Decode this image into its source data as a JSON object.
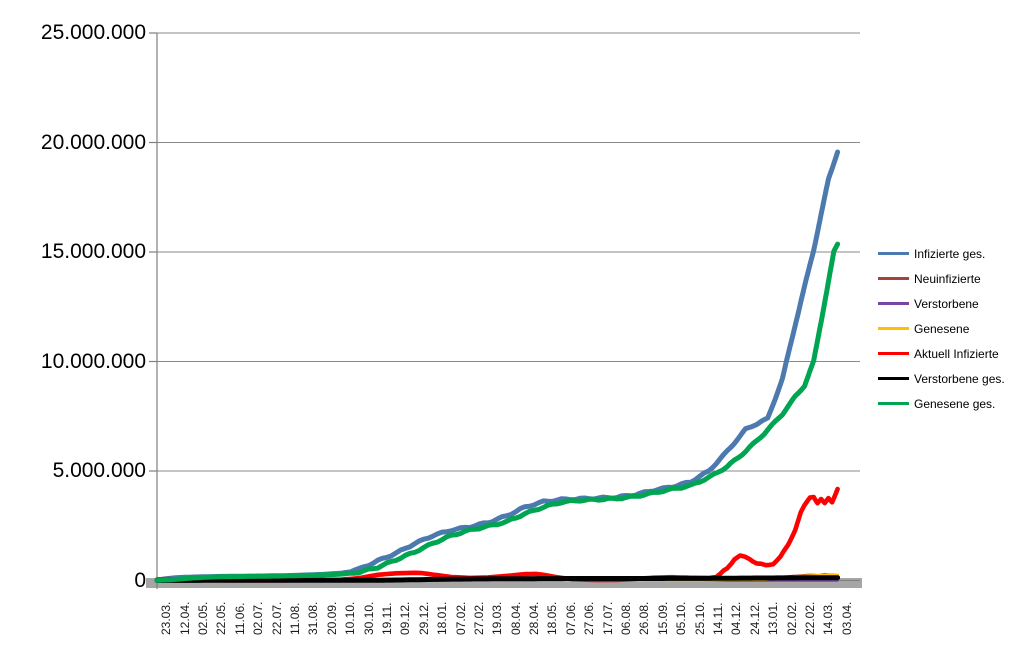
{
  "chart_data": {
    "type": "line",
    "title": "",
    "value_unit": "millions",
    "grid": true,
    "legend_position": "right",
    "y_axis": {
      "min": 0,
      "max": 25000000,
      "ticks": [
        {
          "label": "25.000.000",
          "value": 25
        },
        {
          "label": "20.000.000",
          "value": 20
        },
        {
          "label": "15.000.000",
          "value": 15
        },
        {
          "label": "10.000.000",
          "value": 10
        },
        {
          "label": "5.000.000",
          "value": 5
        },
        {
          "label": "0",
          "value": 0
        }
      ]
    },
    "categories": [
      "23.03.",
      "12.04.",
      "02.05.",
      "22.05.",
      "11.06.",
      "02.07.",
      "22.07.",
      "11.08.",
      "31.08.",
      "20.09.",
      "10.10.",
      "30.10.",
      "19.11.",
      "09.12.",
      "29.12.",
      "18.01.",
      "07.02.",
      "27.02.",
      "19.03.",
      "08.04.",
      "28.04.",
      "18.05.",
      "07.06.",
      "27.06.",
      "17.07.",
      "06.08.",
      "26.08.",
      "15.09.",
      "05.10.",
      "25.10.",
      "14.11.",
      "04.12.",
      "24.12.",
      "13.01.",
      "02.02.",
      "22.02.",
      "14.03.",
      "03.04."
    ],
    "series": [
      {
        "name": "Infizierte ges.",
        "color": "#4C79AE",
        "width": 5,
        "points": [
          [
            0,
            0.03
          ],
          [
            1,
            0.13
          ],
          [
            2,
            0.16
          ],
          [
            3,
            0.18
          ],
          [
            4,
            0.19
          ],
          [
            5,
            0.2
          ],
          [
            6,
            0.21
          ],
          [
            7,
            0.22
          ],
          [
            8,
            0.25
          ],
          [
            9,
            0.28
          ],
          [
            10,
            0.33
          ],
          [
            11,
            0.52
          ],
          [
            12,
            0.9
          ],
          [
            13,
            1.25
          ],
          [
            14,
            1.68
          ],
          [
            15,
            2.05
          ],
          [
            16,
            2.3
          ],
          [
            17,
            2.45
          ],
          [
            18,
            2.65
          ],
          [
            19,
            2.95
          ],
          [
            20,
            3.35
          ],
          [
            21,
            3.6
          ],
          [
            22,
            3.7
          ],
          [
            23,
            3.73
          ],
          [
            24,
            3.76
          ],
          [
            25,
            3.8
          ],
          [
            26,
            3.92
          ],
          [
            27,
            4.12
          ],
          [
            28,
            4.28
          ],
          [
            29,
            4.5
          ],
          [
            30,
            5.0
          ],
          [
            31,
            5.9
          ],
          [
            32,
            6.9
          ],
          [
            32.6,
            7.15
          ],
          [
            33.2,
            7.4
          ],
          [
            34,
            9.2
          ],
          [
            34.7,
            11.7
          ],
          [
            35.7,
            15.1
          ],
          [
            36.5,
            18.3
          ],
          [
            37,
            19.6
          ]
        ]
      },
      {
        "name": "Neuinfizierte",
        "color": "#A5423E",
        "width": 2.4,
        "points": [
          [
            0,
            0.003
          ],
          [
            2,
            0.002
          ],
          [
            4,
            0.001
          ],
          [
            6,
            0.001
          ],
          [
            8,
            0.002
          ],
          [
            10,
            0.004
          ],
          [
            11,
            0.012
          ],
          [
            12,
            0.02
          ],
          [
            13,
            0.022
          ],
          [
            14,
            0.025
          ],
          [
            15,
            0.018
          ],
          [
            16,
            0.01
          ],
          [
            17,
            0.009
          ],
          [
            18,
            0.014
          ],
          [
            19,
            0.019
          ],
          [
            20,
            0.02
          ],
          [
            21,
            0.012
          ],
          [
            22,
            0.005
          ],
          [
            23,
            0.002
          ],
          [
            24,
            0.001
          ],
          [
            25,
            0.002
          ],
          [
            26,
            0.007
          ],
          [
            27,
            0.01
          ],
          [
            28,
            0.008
          ],
          [
            29,
            0.01
          ],
          [
            30,
            0.035
          ],
          [
            31,
            0.055
          ],
          [
            32,
            0.04
          ],
          [
            33,
            0.06
          ],
          [
            34,
            0.17
          ],
          [
            35,
            0.23
          ],
          [
            35.5,
            0.26
          ],
          [
            36,
            0.24
          ],
          [
            36.3,
            0.29
          ],
          [
            37,
            0.26
          ]
        ]
      },
      {
        "name": "Verstorbene",
        "color": "#7A44A4",
        "width": 2.4,
        "points": [
          [
            0,
            0.0002
          ],
          [
            5,
            0.0001
          ],
          [
            10,
            0.0003
          ],
          [
            12,
            0.0006
          ],
          [
            13,
            0.0009
          ],
          [
            14,
            0.001
          ],
          [
            15,
            0.0009
          ],
          [
            16,
            0.0006
          ],
          [
            18,
            0.0003
          ],
          [
            20,
            0.0003
          ],
          [
            22,
            0.0002
          ],
          [
            24,
            0.0001
          ],
          [
            26,
            0.0001
          ],
          [
            28,
            0.0001
          ],
          [
            30,
            0.0002
          ],
          [
            32,
            0.0004
          ],
          [
            33,
            0.0004
          ],
          [
            34,
            0.0003
          ],
          [
            35,
            0.0003
          ],
          [
            36,
            0.0003
          ],
          [
            37,
            0.0003
          ]
        ]
      },
      {
        "name": "Genesene",
        "color": "#FFC000",
        "width": 3,
        "points": [
          [
            0,
            0.001
          ],
          [
            2,
            0.003
          ],
          [
            4,
            0.002
          ],
          [
            6,
            0.001
          ],
          [
            8,
            0.002
          ],
          [
            10,
            0.003
          ],
          [
            11,
            0.008
          ],
          [
            12,
            0.016
          ],
          [
            13,
            0.02
          ],
          [
            14,
            0.024
          ],
          [
            15,
            0.02
          ],
          [
            16,
            0.013
          ],
          [
            17,
            0.01
          ],
          [
            18,
            0.012
          ],
          [
            19,
            0.017
          ],
          [
            20,
            0.02
          ],
          [
            21,
            0.015
          ],
          [
            22,
            0.007
          ],
          [
            23,
            0.003
          ],
          [
            24,
            0.001
          ],
          [
            25,
            0.002
          ],
          [
            26,
            0.005
          ],
          [
            27,
            0.009
          ],
          [
            28,
            0.009
          ],
          [
            29,
            0.008
          ],
          [
            30,
            0.022
          ],
          [
            31,
            0.045
          ],
          [
            32,
            0.05
          ],
          [
            33,
            0.048
          ],
          [
            34,
            0.11
          ],
          [
            35,
            0.19
          ],
          [
            36,
            0.23
          ],
          [
            36.5,
            0.26
          ],
          [
            37,
            0.25
          ]
        ]
      },
      {
        "name": "Aktuell Infizierte",
        "color": "#FF0000",
        "width": 4.6,
        "points": [
          [
            0,
            0.04
          ],
          [
            0.4,
            0.06
          ],
          [
            1,
            0.055
          ],
          [
            1.5,
            0.04
          ],
          [
            2,
            0.025
          ],
          [
            3,
            0.015
          ],
          [
            4,
            0.01
          ],
          [
            5,
            0.007
          ],
          [
            6,
            0.008
          ],
          [
            7,
            0.011
          ],
          [
            8,
            0.014
          ],
          [
            9,
            0.02
          ],
          [
            10,
            0.038
          ],
          [
            11,
            0.11
          ],
          [
            12,
            0.26
          ],
          [
            13,
            0.33
          ],
          [
            14,
            0.35
          ],
          [
            14.4,
            0.34
          ],
          [
            15,
            0.27
          ],
          [
            16,
            0.16
          ],
          [
            17,
            0.12
          ],
          [
            18,
            0.14
          ],
          [
            19,
            0.21
          ],
          [
            20,
            0.29
          ],
          [
            20.6,
            0.3
          ],
          [
            21,
            0.26
          ],
          [
            21.6,
            0.17
          ],
          [
            22,
            0.12
          ],
          [
            22.6,
            0.06
          ],
          [
            23,
            0.045
          ],
          [
            24,
            0.02
          ],
          [
            25,
            0.025
          ],
          [
            26,
            0.07
          ],
          [
            27,
            0.13
          ],
          [
            28,
            0.15
          ],
          [
            29,
            0.125
          ],
          [
            30,
            0.115
          ],
          [
            30.4,
            0.16
          ],
          [
            31,
            0.55
          ],
          [
            31.4,
            1.0
          ],
          [
            31.7,
            1.12
          ],
          [
            32.2,
            1.0
          ],
          [
            32.6,
            0.8
          ],
          [
            33.1,
            0.67
          ],
          [
            33.5,
            0.78
          ],
          [
            33.9,
            1.08
          ],
          [
            34.3,
            1.6
          ],
          [
            34.7,
            2.35
          ],
          [
            35.0,
            3.1
          ],
          [
            35.2,
            3.4
          ],
          [
            35.5,
            3.8
          ],
          [
            35.7,
            3.85
          ],
          [
            35.9,
            3.55
          ],
          [
            36.1,
            3.7
          ],
          [
            36.3,
            3.5
          ],
          [
            36.5,
            3.75
          ],
          [
            36.7,
            3.6
          ],
          [
            37,
            4.2
          ]
        ]
      },
      {
        "name": "Verstorbene ges.",
        "color": "#000000",
        "width": 5,
        "points": [
          [
            0,
            0.001
          ],
          [
            2,
            0.006
          ],
          [
            4,
            0.009
          ],
          [
            6,
            0.009
          ],
          [
            8,
            0.009
          ],
          [
            10,
            0.01
          ],
          [
            11,
            0.011
          ],
          [
            12,
            0.014
          ],
          [
            13,
            0.021
          ],
          [
            14,
            0.033
          ],
          [
            15,
            0.048
          ],
          [
            16,
            0.062
          ],
          [
            17,
            0.07
          ],
          [
            18,
            0.075
          ],
          [
            19,
            0.078
          ],
          [
            20,
            0.082
          ],
          [
            21,
            0.086
          ],
          [
            22,
            0.089
          ],
          [
            23,
            0.09
          ],
          [
            24,
            0.091
          ],
          [
            25,
            0.092
          ],
          [
            26,
            0.092
          ],
          [
            27,
            0.093
          ],
          [
            28,
            0.094
          ],
          [
            29,
            0.095
          ],
          [
            30,
            0.098
          ],
          [
            31,
            0.103
          ],
          [
            32,
            0.11
          ],
          [
            33,
            0.114
          ],
          [
            34,
            0.118
          ],
          [
            35,
            0.122
          ],
          [
            36,
            0.126
          ],
          [
            37,
            0.13
          ]
        ]
      },
      {
        "name": "Genesene ges.",
        "color": "#00A551",
        "width": 5,
        "points": [
          [
            0,
            0.005
          ],
          [
            1,
            0.05
          ],
          [
            2,
            0.12
          ],
          [
            3,
            0.16
          ],
          [
            4,
            0.175
          ],
          [
            5,
            0.185
          ],
          [
            6,
            0.195
          ],
          [
            7,
            0.21
          ],
          [
            8,
            0.23
          ],
          [
            9,
            0.25
          ],
          [
            10,
            0.29
          ],
          [
            11,
            0.38
          ],
          [
            12,
            0.6
          ],
          [
            13,
            0.95
          ],
          [
            14,
            1.3
          ],
          [
            15,
            1.7
          ],
          [
            16,
            2.05
          ],
          [
            17,
            2.3
          ],
          [
            18,
            2.48
          ],
          [
            19,
            2.68
          ],
          [
            20,
            3.05
          ],
          [
            21,
            3.35
          ],
          [
            22,
            3.58
          ],
          [
            23,
            3.66
          ],
          [
            24,
            3.7
          ],
          [
            25,
            3.74
          ],
          [
            26,
            3.84
          ],
          [
            27,
            4.0
          ],
          [
            28,
            4.17
          ],
          [
            29,
            4.33
          ],
          [
            30,
            4.7
          ],
          [
            31,
            5.2
          ],
          [
            32,
            5.9
          ],
          [
            33,
            6.7
          ],
          [
            34,
            7.6
          ],
          [
            34.7,
            8.4
          ],
          [
            35.2,
            8.9
          ],
          [
            35.7,
            10.0
          ],
          [
            36.25,
            12.5
          ],
          [
            36.8,
            15.0
          ],
          [
            37,
            15.35
          ]
        ]
      }
    ]
  },
  "colors": {
    "gridline": "#8A8A8A",
    "axis_line": "#7F7F7F",
    "x_axis_bar": "#A6A6A6",
    "background": "#FFFFFF",
    "y_label_text": "#000000",
    "x_label_text": "#1A1A1A"
  }
}
